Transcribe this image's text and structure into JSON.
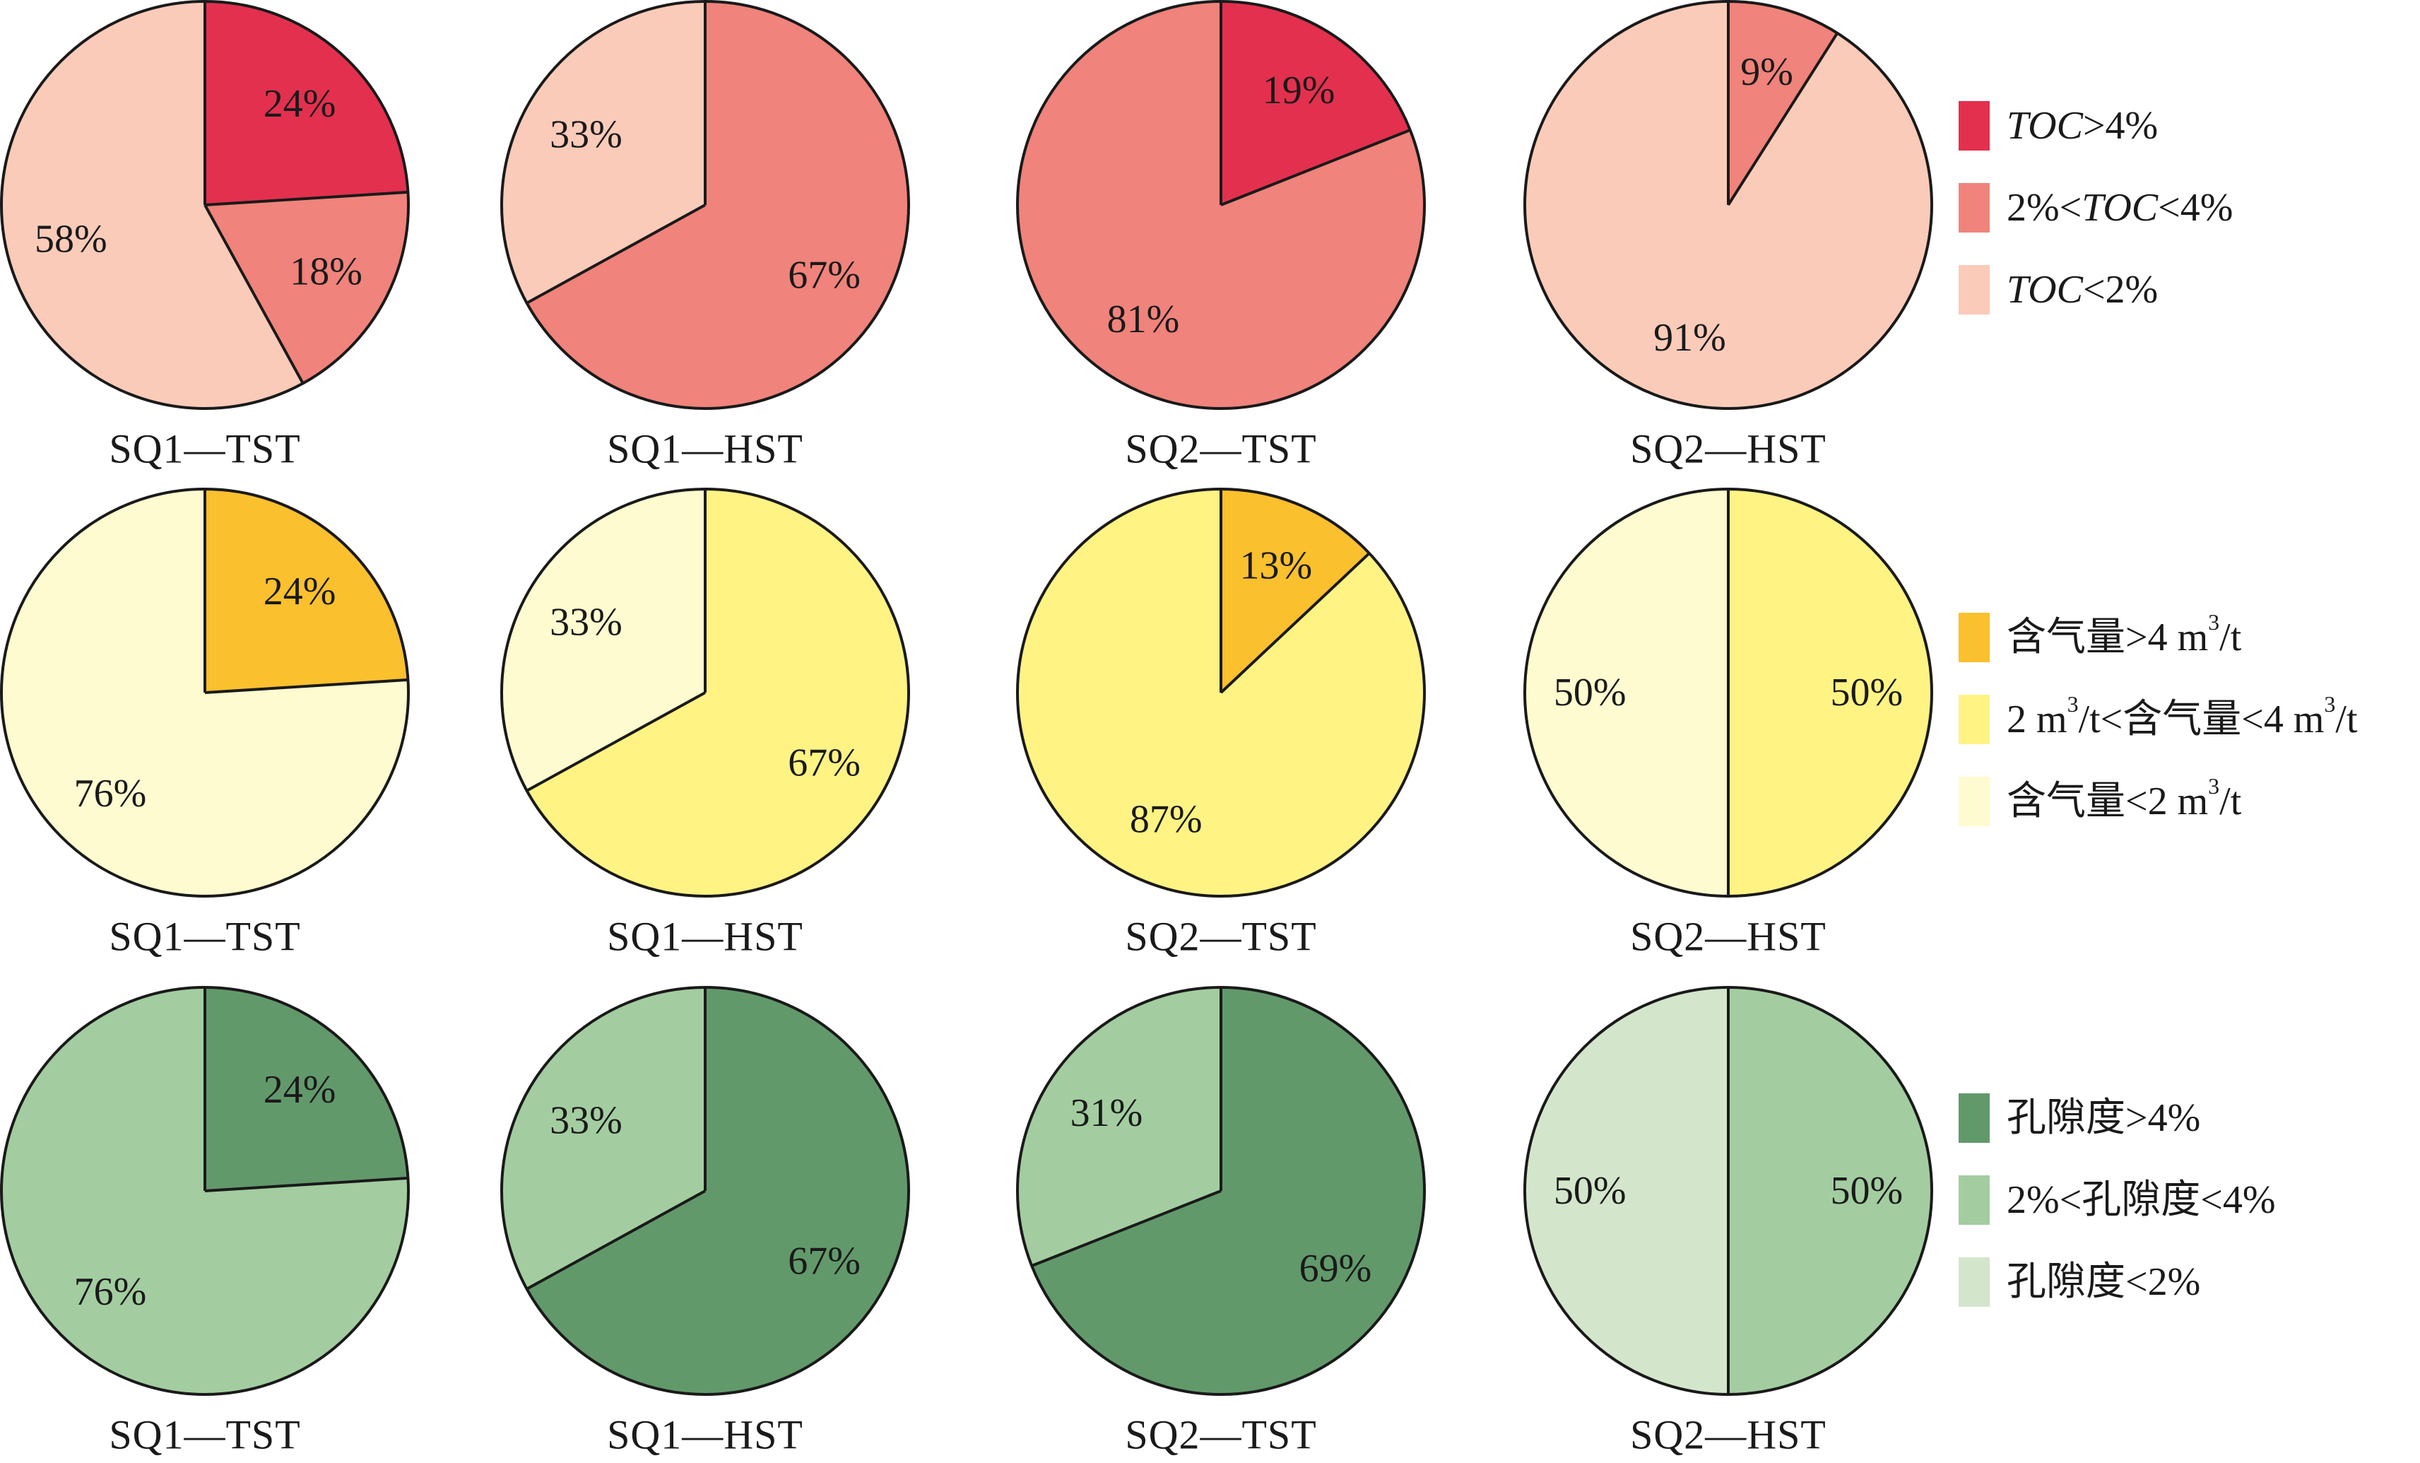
{
  "chart_data": [
    {
      "type": "pie",
      "group": "TOC",
      "title": "SQ1—TST",
      "slices": [
        {
          "label": "24%",
          "value": 24,
          "category": "TOC>4%",
          "color": "#e3304e"
        },
        {
          "label": "18%",
          "value": 18,
          "category": "2%<TOC<4%",
          "color": "#f0837b"
        },
        {
          "label": "58%",
          "value": 58,
          "category": "TOC<2%",
          "color": "#fbcbb9"
        }
      ]
    },
    {
      "type": "pie",
      "group": "TOC",
      "title": "SQ1—HST",
      "slices": [
        {
          "label": "67%",
          "value": 67,
          "category": "2%<TOC<4%",
          "color": "#f0837b"
        },
        {
          "label": "33%",
          "value": 33,
          "category": "TOC<2%",
          "color": "#fbcbb9"
        }
      ]
    },
    {
      "type": "pie",
      "group": "TOC",
      "title": "SQ2—TST",
      "slices": [
        {
          "label": "19%",
          "value": 19,
          "category": "TOC>4%",
          "color": "#e3304e"
        },
        {
          "label": "81%",
          "value": 81,
          "category": "2%<TOC<4%",
          "color": "#f0837b"
        }
      ]
    },
    {
      "type": "pie",
      "group": "TOC",
      "title": "SQ2—HST",
      "slices": [
        {
          "label": "9%",
          "value": 9,
          "category": "2%<TOC<4%",
          "color": "#f0837b"
        },
        {
          "label": "91%",
          "value": 91,
          "category": "TOC<2%",
          "color": "#fbcbb9"
        }
      ]
    },
    {
      "type": "pie",
      "group": "gas",
      "title": "SQ1—TST",
      "slices": [
        {
          "label": "24%",
          "value": 24,
          "category": "含气量>4 m³/t",
          "color": "#fbc02d"
        },
        {
          "label": "76%",
          "value": 76,
          "category": "含气量<2 m³/t",
          "color": "#fffbd0"
        }
      ]
    },
    {
      "type": "pie",
      "group": "gas",
      "title": "SQ1—HST",
      "slices": [
        {
          "label": "67%",
          "value": 67,
          "category": "2 m³/t<含气量<4 m³/t",
          "color": "#fff384"
        },
        {
          "label": "33%",
          "value": 33,
          "category": "含气量<2 m³/t",
          "color": "#fffbd0"
        }
      ]
    },
    {
      "type": "pie",
      "group": "gas",
      "title": "SQ2—TST",
      "slices": [
        {
          "label": "13%",
          "value": 13,
          "category": "含气量>4 m³/t",
          "color": "#fbc02d"
        },
        {
          "label": "87%",
          "value": 87,
          "category": "2 m³/t<含气量<4 m³/t",
          "color": "#fff384"
        }
      ]
    },
    {
      "type": "pie",
      "group": "gas",
      "title": "SQ2—HST",
      "slices": [
        {
          "label": "50%",
          "value": 50,
          "category": "2 m³/t<含气量<4 m³/t",
          "color": "#fff384"
        },
        {
          "label": "50%",
          "value": 50,
          "category": "含气量<2 m³/t",
          "color": "#fffbd0"
        }
      ]
    },
    {
      "type": "pie",
      "group": "porosity",
      "title": "SQ1—TST",
      "slices": [
        {
          "label": "24%",
          "value": 24,
          "category": "孔隙度>4%",
          "color": "#62996b"
        },
        {
          "label": "76%",
          "value": 76,
          "category": "2%<孔隙度<4%",
          "color": "#a3cda0"
        }
      ]
    },
    {
      "type": "pie",
      "group": "porosity",
      "title": "SQ1—HST",
      "slices": [
        {
          "label": "67%",
          "value": 67,
          "category": "孔隙度>4%",
          "color": "#62996b"
        },
        {
          "label": "33%",
          "value": 33,
          "category": "2%<孔隙度<4%",
          "color": "#a3cda0"
        }
      ]
    },
    {
      "type": "pie",
      "group": "porosity",
      "title": "SQ2—TST",
      "slices": [
        {
          "label": "69%",
          "value": 69,
          "category": "孔隙度>4%",
          "color": "#62996b"
        },
        {
          "label": "31%",
          "value": 31,
          "category": "2%<孔隙度<4%",
          "color": "#a3cda0"
        }
      ]
    },
    {
      "type": "pie",
      "group": "porosity",
      "title": "SQ2—HST",
      "slices": [
        {
          "label": "50%",
          "value": 50,
          "category": "2%<孔隙度<4%",
          "color": "#a3cda0"
        },
        {
          "label": "50%",
          "value": 50,
          "category": "孔隙度<2%",
          "color": "#d3e6cb"
        }
      ]
    }
  ],
  "legends": [
    {
      "group": "TOC",
      "items": [
        {
          "color": "#e3304e",
          "parts": [
            {
              "text": "TOC",
              "style": "it"
            },
            {
              "text": ">4%"
            }
          ]
        },
        {
          "color": "#f0837b",
          "parts": [
            {
              "text": "2%<"
            },
            {
              "text": "TOC",
              "style": "it"
            },
            {
              "text": "<4%"
            }
          ]
        },
        {
          "color": "#fbcbb9",
          "parts": [
            {
              "text": "TOC",
              "style": "it"
            },
            {
              "text": "<2%"
            }
          ]
        }
      ]
    },
    {
      "group": "gas",
      "items": [
        {
          "color": "#fbc02d",
          "parts": [
            {
              "text": "含气量>4 m"
            },
            {
              "text": "3",
              "style": "sup"
            },
            {
              "text": "/t"
            }
          ]
        },
        {
          "color": "#fff384",
          "parts": [
            {
              "text": "2 m"
            },
            {
              "text": "3",
              "style": "sup"
            },
            {
              "text": "/t<含气量<4 m"
            },
            {
              "text": "3",
              "style": "sup"
            },
            {
              "text": "/t"
            }
          ]
        },
        {
          "color": "#fffbd0",
          "parts": [
            {
              "text": "含气量<2 m"
            },
            {
              "text": "3",
              "style": "sup"
            },
            {
              "text": "/t"
            }
          ]
        }
      ]
    },
    {
      "group": "porosity",
      "items": [
        {
          "color": "#62996b",
          "parts": [
            {
              "text": "孔隙度>4%"
            }
          ]
        },
        {
          "color": "#a3cda0",
          "parts": [
            {
              "text": "2%<孔隙度<4%"
            }
          ]
        },
        {
          "color": "#d3e6cb",
          "parts": [
            {
              "text": "孔隙度<2%"
            }
          ]
        }
      ]
    }
  ]
}
